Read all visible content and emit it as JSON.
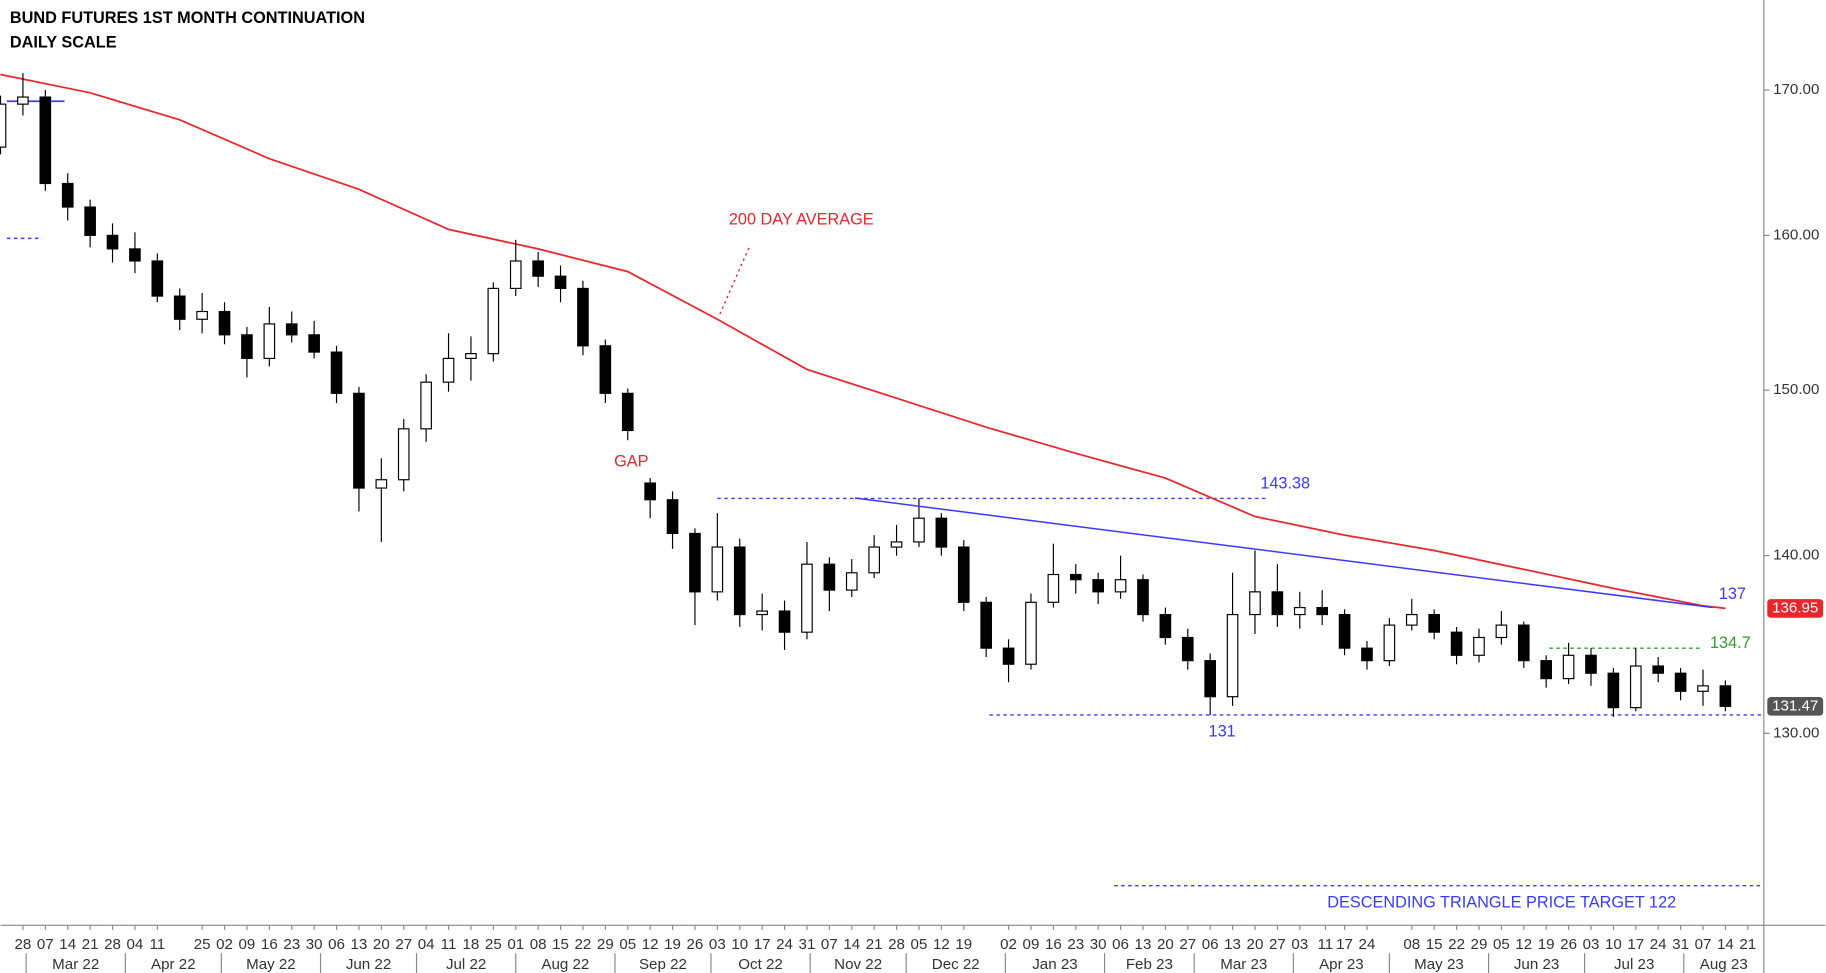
{
  "chart_data": {
    "type": "candlestick",
    "title": "BUND FUTURES 1ST MONTH CONTINUATION",
    "subtitle": "DAILY SCALE",
    "log_scale": true,
    "grid": false,
    "xlim": [
      "2022-02-21",
      "2023-08-26"
    ],
    "ylim": [
      120,
      176.5
    ],
    "yticks": [
      {
        "value": 130,
        "label": "130.00"
      },
      {
        "value": 140,
        "label": "140.00"
      },
      {
        "value": 150,
        "label": "150.00"
      },
      {
        "value": 160,
        "label": "160.00"
      },
      {
        "value": 170,
        "label": "170.00"
      }
    ],
    "xticks": [
      {
        "value": "2022-02-28",
        "label": "28"
      },
      {
        "value": "2022-03-07",
        "label": "07"
      },
      {
        "value": "2022-03-14",
        "label": "14"
      },
      {
        "value": "2022-03-21",
        "label": "21"
      },
      {
        "value": "2022-03-28",
        "label": "28"
      },
      {
        "value": "2022-04-04",
        "label": "04"
      },
      {
        "value": "2022-04-11",
        "label": "11"
      },
      {
        "value": "2022-04-25",
        "label": "25"
      },
      {
        "value": "2022-05-02",
        "label": "02"
      },
      {
        "value": "2022-05-09",
        "label": "09"
      },
      {
        "value": "2022-05-16",
        "label": "16"
      },
      {
        "value": "2022-05-23",
        "label": "23"
      },
      {
        "value": "2022-05-30",
        "label": "30"
      },
      {
        "value": "2022-06-06",
        "label": "06"
      },
      {
        "value": "2022-06-13",
        "label": "13"
      },
      {
        "value": "2022-06-20",
        "label": "20"
      },
      {
        "value": "2022-06-27",
        "label": "27"
      },
      {
        "value": "2022-07-04",
        "label": "04"
      },
      {
        "value": "2022-07-11",
        "label": "11"
      },
      {
        "value": "2022-07-18",
        "label": "18"
      },
      {
        "value": "2022-07-25",
        "label": "25"
      },
      {
        "value": "2022-08-01",
        "label": "01"
      },
      {
        "value": "2022-08-08",
        "label": "08"
      },
      {
        "value": "2022-08-15",
        "label": "15"
      },
      {
        "value": "2022-08-22",
        "label": "22"
      },
      {
        "value": "2022-08-29",
        "label": "29"
      },
      {
        "value": "2022-09-05",
        "label": "05"
      },
      {
        "value": "2022-09-12",
        "label": "12"
      },
      {
        "value": "2022-09-19",
        "label": "19"
      },
      {
        "value": "2022-09-26",
        "label": "26"
      },
      {
        "value": "2022-10-03",
        "label": "03"
      },
      {
        "value": "2022-10-10",
        "label": "10"
      },
      {
        "value": "2022-10-17",
        "label": "17"
      },
      {
        "value": "2022-10-24",
        "label": "24"
      },
      {
        "value": "2022-10-31",
        "label": "31"
      },
      {
        "value": "2022-11-07",
        "label": "07"
      },
      {
        "value": "2022-11-14",
        "label": "14"
      },
      {
        "value": "2022-11-21",
        "label": "21"
      },
      {
        "value": "2022-11-28",
        "label": "28"
      },
      {
        "value": "2022-12-05",
        "label": "05"
      },
      {
        "value": "2022-12-12",
        "label": "12"
      },
      {
        "value": "2022-12-19",
        "label": "19"
      },
      {
        "value": "2023-01-02",
        "label": "02"
      },
      {
        "value": "2023-01-09",
        "label": "09"
      },
      {
        "value": "2023-01-16",
        "label": "16"
      },
      {
        "value": "2023-01-23",
        "label": "23"
      },
      {
        "value": "2023-01-30",
        "label": "30"
      },
      {
        "value": "2023-02-06",
        "label": "06"
      },
      {
        "value": "2023-02-13",
        "label": "13"
      },
      {
        "value": "2023-02-20",
        "label": "20"
      },
      {
        "value": "2023-02-27",
        "label": "27"
      },
      {
        "value": "2023-03-06",
        "label": "06"
      },
      {
        "value": "2023-03-13",
        "label": "13"
      },
      {
        "value": "2023-03-20",
        "label": "20"
      },
      {
        "value": "2023-03-27",
        "label": "27"
      },
      {
        "value": "2023-04-03",
        "label": "03"
      },
      {
        "value": "2023-04-11",
        "label": "11"
      },
      {
        "value": "2023-04-17",
        "label": "17"
      },
      {
        "value": "2023-04-24",
        "label": "24"
      },
      {
        "value": "2023-05-08",
        "label": "08"
      },
      {
        "value": "2023-05-15",
        "label": "15"
      },
      {
        "value": "2023-05-22",
        "label": "22"
      },
      {
        "value": "2023-05-29",
        "label": "29"
      },
      {
        "value": "2023-06-05",
        "label": "05"
      },
      {
        "value": "2023-06-12",
        "label": "12"
      },
      {
        "value": "2023-06-19",
        "label": "19"
      },
      {
        "value": "2023-06-26",
        "label": "26"
      },
      {
        "value": "2023-07-03",
        "label": "03"
      },
      {
        "value": "2023-07-10",
        "label": "10"
      },
      {
        "value": "2023-07-17",
        "label": "17"
      },
      {
        "value": "2023-07-24",
        "label": "24"
      },
      {
        "value": "2023-07-31",
        "label": "31"
      },
      {
        "value": "2023-08-07",
        "label": "07"
      },
      {
        "value": "2023-08-14",
        "label": "14"
      },
      {
        "value": "2023-08-21",
        "label": "21"
      }
    ],
    "month_labels": [
      {
        "value": "2022-03",
        "label": "Mar 22"
      },
      {
        "value": "2022-04",
        "label": "Apr 22"
      },
      {
        "value": "2022-05",
        "label": "May 22"
      },
      {
        "value": "2022-06",
        "label": "Jun 22"
      },
      {
        "value": "2022-07",
        "label": "Jul 22"
      },
      {
        "value": "2022-08",
        "label": "Aug 22"
      },
      {
        "value": "2022-09",
        "label": "Sep 22"
      },
      {
        "value": "2022-10",
        "label": "Oct 22"
      },
      {
        "value": "2022-11",
        "label": "Nov 22"
      },
      {
        "value": "2022-12",
        "label": "Dec 22"
      },
      {
        "value": "2023-01",
        "label": "Jan 23"
      },
      {
        "value": "2023-02",
        "label": "Feb 23"
      },
      {
        "value": "2023-03",
        "label": "Mar 23"
      },
      {
        "value": "2023-04",
        "label": "Apr 23"
      },
      {
        "value": "2023-05",
        "label": "May 23"
      },
      {
        "value": "2023-06",
        "label": "Jun 23"
      },
      {
        "value": "2023-07",
        "label": "Jul 23"
      },
      {
        "value": "2023-08",
        "label": "Aug 23"
      }
    ],
    "series": [
      {
        "type": "candlestick",
        "up_color": "#ffffff",
        "down_color": "#000000",
        "color": "#000000",
        "x": [
          "2022-02-21",
          "2022-02-28",
          "2022-03-07",
          "2022-03-14",
          "2022-03-21",
          "2022-03-28",
          "2022-04-04",
          "2022-04-11",
          "2022-04-18",
          "2022-04-25",
          "2022-05-02",
          "2022-05-09",
          "2022-05-16",
          "2022-05-23",
          "2022-05-30",
          "2022-06-06",
          "2022-06-13",
          "2022-06-20",
          "2022-06-27",
          "2022-07-04",
          "2022-07-11",
          "2022-07-18",
          "2022-07-25",
          "2022-08-01",
          "2022-08-08",
          "2022-08-15",
          "2022-08-22",
          "2022-08-29",
          "2022-09-05",
          "2022-09-12",
          "2022-09-19",
          "2022-09-26",
          "2022-10-03",
          "2022-10-10",
          "2022-10-17",
          "2022-10-24",
          "2022-10-31",
          "2022-11-07",
          "2022-11-14",
          "2022-11-21",
          "2022-11-28",
          "2022-12-05",
          "2022-12-12",
          "2022-12-19",
          "2022-12-26",
          "2023-01-02",
          "2023-01-09",
          "2023-01-16",
          "2023-01-23",
          "2023-01-30",
          "2023-02-06",
          "2023-02-13",
          "2023-02-20",
          "2023-02-27",
          "2023-03-06",
          "2023-03-13",
          "2023-03-20",
          "2023-03-27",
          "2023-04-03",
          "2023-04-10",
          "2023-04-17",
          "2023-04-24",
          "2023-05-01",
          "2023-05-08",
          "2023-05-15",
          "2023-05-22",
          "2023-05-29",
          "2023-06-05",
          "2023-06-12",
          "2023-06-19",
          "2023-06-26",
          "2023-07-03",
          "2023-07-10",
          "2023-07-17",
          "2023-07-24",
          "2023-07-31",
          "2023-08-07",
          "2023-08-14"
        ],
        "open": [
          166.0,
          169.0,
          169.5,
          163.5,
          161.9,
          160.0,
          159.1,
          158.3,
          156.0,
          154.5,
          155.0,
          153.5,
          152.0,
          154.2,
          153.5,
          152.4,
          149.8,
          144.0,
          144.5,
          147.6,
          150.5,
          152.0,
          152.3,
          156.5,
          158.3,
          157.3,
          156.5,
          152.8,
          149.8,
          144.3,
          143.3,
          141.3,
          137.9,
          140.5,
          136.6,
          136.8,
          135.6,
          139.5,
          138.0,
          139.0,
          140.5,
          140.8,
          142.2,
          140.5,
          137.3,
          134.7,
          133.8,
          137.3,
          138.9,
          138.6,
          137.9,
          138.6,
          136.6,
          135.3,
          134.0,
          132.0,
          136.6,
          137.9,
          136.6,
          137.0,
          136.6,
          134.7,
          134.0,
          136.0,
          136.6,
          135.6,
          134.3,
          135.3,
          136.0,
          134.0,
          133.0,
          134.3,
          133.3,
          131.4,
          133.7,
          133.3,
          132.3,
          132.6
        ],
        "high": [
          169.6,
          171.2,
          170.0,
          164.2,
          162.4,
          160.8,
          160.2,
          158.8,
          156.5,
          156.2,
          155.6,
          154.0,
          155.3,
          155.0,
          154.4,
          152.8,
          150.2,
          145.8,
          148.2,
          151.0,
          153.6,
          153.4,
          156.9,
          159.7,
          158.9,
          158.0,
          157.0,
          153.2,
          150.1,
          144.6,
          143.8,
          141.6,
          142.5,
          141.0,
          137.8,
          137.4,
          140.8,
          139.9,
          139.8,
          141.2,
          141.8,
          143.4,
          142.5,
          140.9,
          137.6,
          135.2,
          137.8,
          140.7,
          139.5,
          139.0,
          140.0,
          138.9,
          137.0,
          135.8,
          134.4,
          139.0,
          140.3,
          139.5,
          137.9,
          138.0,
          136.9,
          135.1,
          136.4,
          137.5,
          136.9,
          135.9,
          135.8,
          136.8,
          136.2,
          134.3,
          135.0,
          134.7,
          133.6,
          134.7,
          134.2,
          133.6,
          133.5,
          132.9
        ],
        "low": [
          165.5,
          168.2,
          163.0,
          161.0,
          159.2,
          158.2,
          157.5,
          155.6,
          153.8,
          153.6,
          152.9,
          150.8,
          151.5,
          153.0,
          152.0,
          149.2,
          142.6,
          140.8,
          143.8,
          146.8,
          149.9,
          150.6,
          151.8,
          156.0,
          156.6,
          155.6,
          152.2,
          149.2,
          146.9,
          142.2,
          140.4,
          136.0,
          137.4,
          135.9,
          135.7,
          134.6,
          135.2,
          136.8,
          137.6,
          138.7,
          140.0,
          140.5,
          140.0,
          136.8,
          134.2,
          132.8,
          133.5,
          137.0,
          137.8,
          137.2,
          137.5,
          136.2,
          134.9,
          133.5,
          131.0,
          131.5,
          135.5,
          135.9,
          135.8,
          136.0,
          134.3,
          133.5,
          133.7,
          135.7,
          135.2,
          133.8,
          133.9,
          134.9,
          133.6,
          132.5,
          132.7,
          132.6,
          130.9,
          131.2,
          132.8,
          131.8,
          131.5,
          131.2
        ],
        "close": [
          169.0,
          169.5,
          163.5,
          161.9,
          160.0,
          159.1,
          158.3,
          156.0,
          154.5,
          155.0,
          153.5,
          152.0,
          154.2,
          153.5,
          152.4,
          149.8,
          144.0,
          144.5,
          147.6,
          150.5,
          152.0,
          152.3,
          156.5,
          158.3,
          157.3,
          156.5,
          152.8,
          149.8,
          147.5,
          143.3,
          141.3,
          137.9,
          140.5,
          136.6,
          136.8,
          135.6,
          139.5,
          138.0,
          139.0,
          140.5,
          140.8,
          142.2,
          140.5,
          137.3,
          134.7,
          133.8,
          137.3,
          138.9,
          138.6,
          137.9,
          138.6,
          136.6,
          135.3,
          134.0,
          132.0,
          136.6,
          137.9,
          136.6,
          137.0,
          136.6,
          134.7,
          134.0,
          136.0,
          136.6,
          135.6,
          134.3,
          135.3,
          136.0,
          134.0,
          133.0,
          134.3,
          133.3,
          131.4,
          133.7,
          133.3,
          132.3,
          132.6,
          131.47
        ]
      },
      {
        "type": "line",
        "name": "200 DAY AVERAGE",
        "color": "#e8262b",
        "x": [
          "2022-02-21",
          "2022-03-21",
          "2022-04-18",
          "2022-05-16",
          "2022-06-13",
          "2022-07-11",
          "2022-08-08",
          "2022-09-05",
          "2022-10-03",
          "2022-10-31",
          "2022-11-28",
          "2022-12-26",
          "2023-01-23",
          "2023-02-20",
          "2023-03-20",
          "2023-04-17",
          "2023-05-15",
          "2023-06-12",
          "2023-07-10",
          "2023-08-07",
          "2023-08-14"
        ],
        "values": [
          171.1,
          169.8,
          167.9,
          165.2,
          163.1,
          160.4,
          159.1,
          157.6,
          154.5,
          151.3,
          149.5,
          147.7,
          146.1,
          144.6,
          142.3,
          141.2,
          140.3,
          139.2,
          138.1,
          137.1,
          136.95
        ]
      }
    ],
    "trend_line": {
      "x": [
        "2022-11-15",
        "2023-08-10"
      ],
      "values": [
        143.4,
        137
      ],
      "color": "#3a3aff"
    },
    "levels": [
      {
        "value": 143.38,
        "x": [
          "2022-10-03",
          "2023-03-24"
        ],
        "color": "#3a3aff",
        "dashed": true
      },
      {
        "value": 131,
        "x": [
          "2022-12-27",
          "2023-08-26"
        ],
        "color": "#3a3aff",
        "dashed": true
      },
      {
        "value": 122,
        "label": "DESCENDING TRIANGLE PRICE TARGET 122",
        "x": [
          "2023-02-04",
          "2023-08-26"
        ],
        "color": "#3a3aff",
        "dashed": true
      },
      {
        "value": 134.7,
        "x": [
          "2023-06-20",
          "2023-08-07"
        ],
        "color": "#2e9e2e",
        "dashed": true
      },
      {
        "value": 159.8,
        "x": [
          "2022-02-23",
          "2022-03-06"
        ],
        "color": "#3a3aff",
        "dashed": true
      },
      {
        "value": 169.2,
        "x": [
          "2022-02-23",
          "2022-03-13"
        ],
        "color": "#3a3aff",
        "dashed": false
      }
    ],
    "annotations": [
      {
        "text": "GAP",
        "color": "#e8262b"
      }
    ]
  }
}
